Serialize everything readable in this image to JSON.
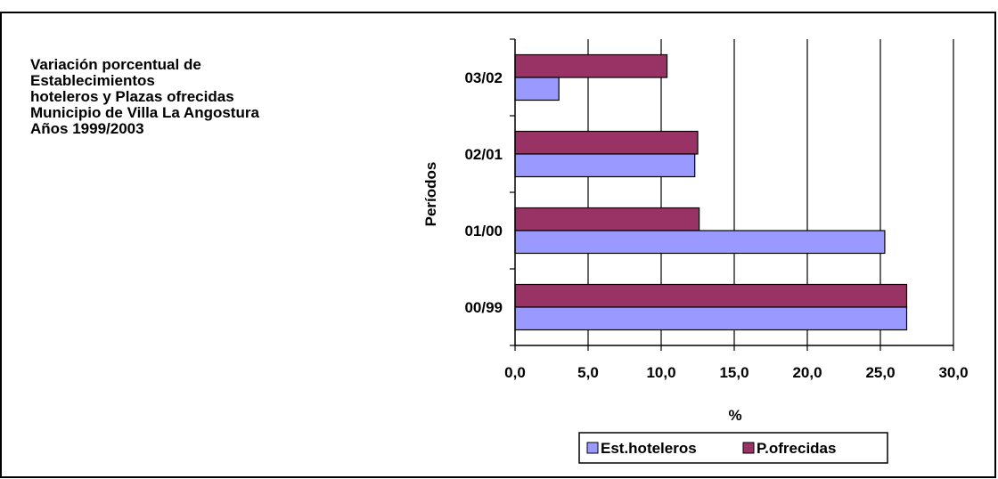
{
  "title_lines": [
    "Variación porcentual de",
    "Establecimientos",
    "hoteleros  y Plazas ofrecidas",
    "Municipio de Villa La Angostura",
    "Años 1999/2003"
  ],
  "chart_data": {
    "type": "bar",
    "orientation": "horizontal",
    "categories": [
      "00/99",
      "01/00",
      "02/01",
      "03/02"
    ],
    "series": [
      {
        "name": "Est.hoteleros",
        "color": "#9999ff",
        "values": [
          26.8,
          25.3,
          12.3,
          3.0
        ]
      },
      {
        "name": "P.ofrecidas",
        "color": "#993366",
        "values": [
          26.8,
          12.6,
          12.5,
          10.4
        ]
      }
    ],
    "xlabel": "%",
    "ylabel": "Períodos",
    "xlim": [
      0,
      30
    ],
    "x_ticks": [
      "0,0",
      "5,0",
      "10,0",
      "15,0",
      "20,0",
      "25,0",
      "30,0"
    ],
    "grid": "vertical",
    "legend": "bottom"
  }
}
